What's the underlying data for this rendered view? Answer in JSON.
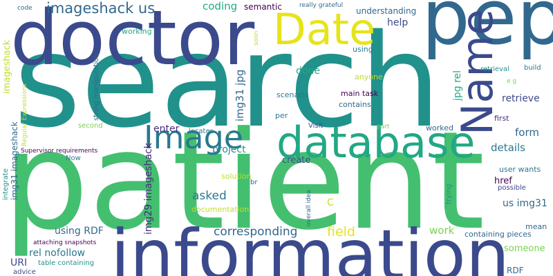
{
  "words": {
    "search": "search",
    "patient": "patient",
    "information": "information",
    "doctor": "doctor",
    "database": "database",
    "pep": "pep",
    "date": "Date",
    "name": "Name",
    "image": "Image",
    "imageshack_us": "imageshack us",
    "coding": "coding",
    "semantic": "semantic",
    "really_grateful": "really grateful",
    "code": "code",
    "understanding": "understanding",
    "working": "working",
    "help": "help",
    "soon": "soon",
    "string_manipulation": "string manipulation",
    "using1": "using",
    "imageshack_v": "imageshack",
    "regular_expressions": "Regular Expressions",
    "img31_jpg": "img31 jpg",
    "done": "done",
    "jpg_rel": "jpg rel",
    "retrieval": "retrieval",
    "build": "build",
    "anyone": "anyone",
    "e_g": "e g",
    "main_task": "main task",
    "scenario": "scenario",
    "contains": "contains",
    "retrieve": "retrieve",
    "img31_imageshack": "img31 imageshack",
    "per": "per",
    "first": "first",
    "second": "second",
    "enter": "enter",
    "locates": "locates",
    "visit": "Visit",
    "part": "part",
    "worked": "worked",
    "form": "form",
    "img29_imageshack": "img29 imageshack",
    "supervisor_requirements": "Supervisor requirements",
    "project": "project",
    "details": "details",
    "now": "Now",
    "create": "create",
    "user_wants": "user wants",
    "integrate": "integrate",
    "asked": "asked",
    "solution": "solution",
    "br": "br",
    "href": "href",
    "possible": "possible",
    "overall_idea": "overall idea",
    "trying": "trying",
    "c": "C",
    "documentation": "documentation",
    "us_img31": "us img31",
    "using_rdf": "using RDF",
    "corresponding": "corresponding",
    "field": "field",
    "work": "work",
    "mean": "mean",
    "rel_nofollow": "rel nofollow",
    "containing_pieces": "containing pieces",
    "attaching_snapshots": "attaching snapshots",
    "someone": "someone",
    "uri": "URI",
    "table_containing": "table containing",
    "advice": "advice",
    "rdf": "RDF",
    "o": "o"
  },
  "colors": {
    "dark_purple": "#440154",
    "indigo": "#472d7b",
    "navy": "#3b4a8c",
    "blue": "#31688e",
    "steel": "#2a788e",
    "teal": "#21918c",
    "teal_green": "#22a884",
    "green": "#44bf70",
    "light_green": "#7ad151",
    "lime": "#bddf26",
    "yellow": "#e6e419"
  }
}
